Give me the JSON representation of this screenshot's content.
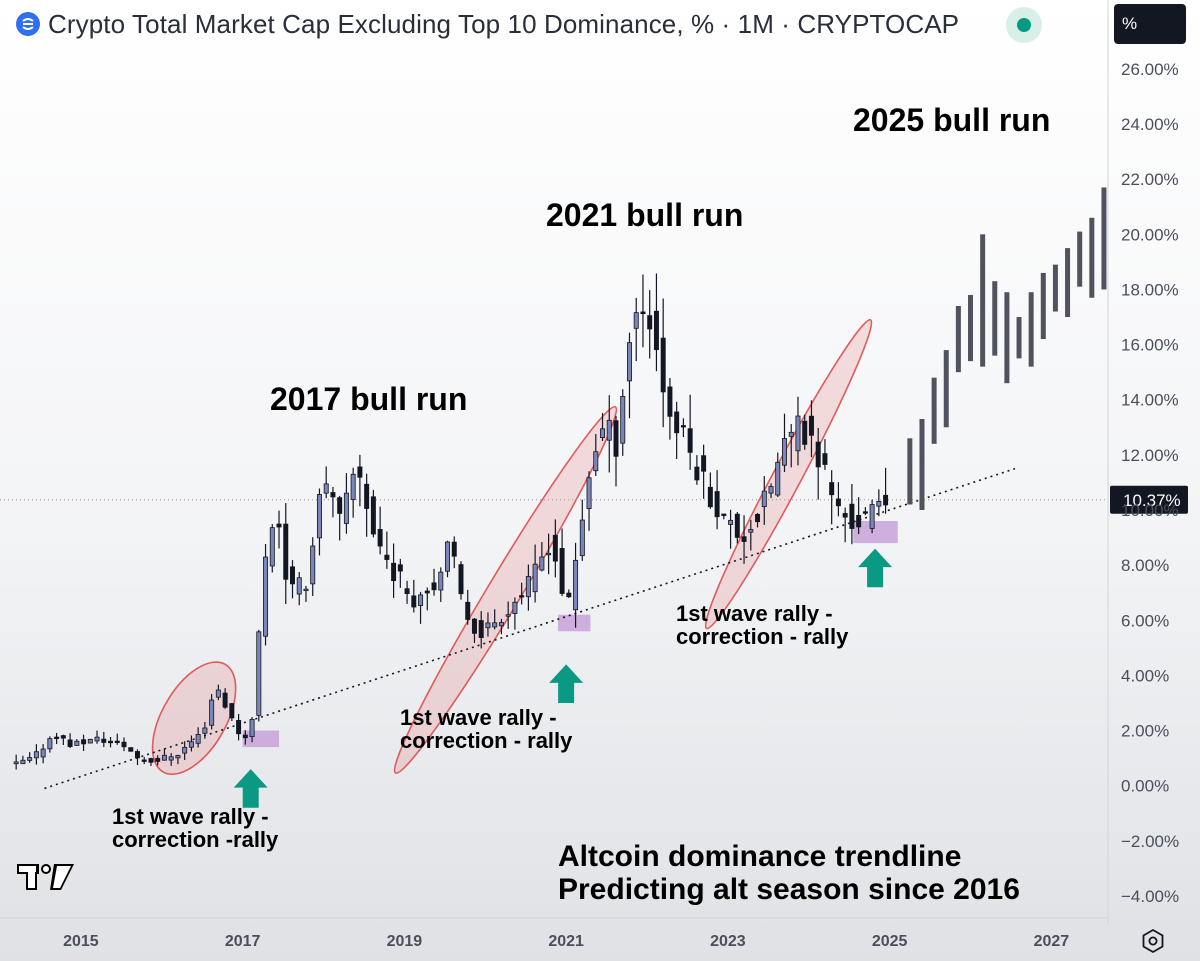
{
  "header": {
    "title": "Crypto Total Market Cap Excluding Top 10 Dominance, % · 1M · CRYPTOCAP",
    "unit_button": "%",
    "status": "live"
  },
  "colors": {
    "up_candle": "#7a86b8",
    "down_candle": "#131722",
    "ellipse_stroke": "#e15a5a",
    "ellipse_fill": "rgba(230,90,90,0.18)",
    "highlight_box": "#c8a2d8",
    "arrow": "#0a9983",
    "projection": "#50535e",
    "price_label_bg": "#131722"
  },
  "chart_data": {
    "type": "candlestick",
    "title": "Crypto Total Market Cap Excluding Top 10 Dominance, %",
    "interval": "1M",
    "ylim": [
      -4.8,
      28.5
    ],
    "xlim": [
      2014.0,
      2027.7
    ],
    "y_ticks": [
      "26.00%",
      "24.00%",
      "22.00%",
      "20.00%",
      "18.00%",
      "16.00%",
      "14.00%",
      "12.00%",
      "10.00%",
      "8.00%",
      "6.00%",
      "4.00%",
      "2.00%",
      "0.00%",
      "−2.00%",
      "−4.00%"
    ],
    "y_tick_values": [
      26,
      24,
      22,
      20,
      18,
      16,
      14,
      12,
      10,
      8,
      6,
      4,
      2,
      0,
      -2,
      -4
    ],
    "x_ticks": [
      "2015",
      "2017",
      "2019",
      "2021",
      "2023",
      "2025",
      "2027"
    ],
    "x_tick_values": [
      2015,
      2017,
      2019,
      2021,
      2023,
      2025,
      2027
    ],
    "last_value": "10.37%",
    "last_value_num": 10.37,
    "grid": false,
    "anchors": [
      [
        2014.2,
        0.7
      ],
      [
        2014.5,
        1.0
      ],
      [
        2014.75,
        1.9
      ],
      [
        2014.95,
        1.5
      ],
      [
        2015.3,
        1.7
      ],
      [
        2015.6,
        1.5
      ],
      [
        2015.8,
        1.0
      ],
      [
        2016.0,
        0.9
      ],
      [
        2016.3,
        1.2
      ],
      [
        2016.6,
        2.0
      ],
      [
        2016.75,
        3.7
      ],
      [
        2016.95,
        2.4
      ],
      [
        2017.1,
        1.6
      ],
      [
        2017.2,
        2.5
      ],
      [
        2017.35,
        8.0
      ],
      [
        2017.5,
        10.3
      ],
      [
        2017.65,
        7.0
      ],
      [
        2017.9,
        7.5
      ],
      [
        2018.05,
        11.2
      ],
      [
        2018.3,
        9.5
      ],
      [
        2018.5,
        11.8
      ],
      [
        2018.7,
        9.2
      ],
      [
        2018.9,
        8.0
      ],
      [
        2019.2,
        6.8
      ],
      [
        2019.5,
        7.5
      ],
      [
        2019.65,
        8.8
      ],
      [
        2019.8,
        6.5
      ],
      [
        2020.0,
        5.5
      ],
      [
        2020.3,
        6.2
      ],
      [
        2020.6,
        7.2
      ],
      [
        2020.9,
        9.0
      ],
      [
        2021.0,
        7.5
      ],
      [
        2021.1,
        6.3
      ],
      [
        2021.25,
        9.0
      ],
      [
        2021.4,
        12.0
      ],
      [
        2021.55,
        13.0
      ],
      [
        2021.7,
        12.5
      ],
      [
        2021.9,
        17.0
      ],
      [
        2022.05,
        17.5
      ],
      [
        2022.2,
        16.0
      ],
      [
        2022.35,
        13.5
      ],
      [
        2022.55,
        12.5
      ],
      [
        2022.8,
        11.0
      ],
      [
        2023.0,
        9.8
      ],
      [
        2023.25,
        9.0
      ],
      [
        2023.5,
        10.0
      ],
      [
        2023.8,
        12.5
      ],
      [
        2024.0,
        13.0
      ],
      [
        2024.2,
        12.0
      ],
      [
        2024.45,
        10.0
      ],
      [
        2024.65,
        9.5
      ],
      [
        2024.85,
        9.8
      ],
      [
        2025.0,
        10.37
      ]
    ],
    "projection_bars": [
      [
        2025.25,
        10.2,
        12.6
      ],
      [
        2025.4,
        10.0,
        13.3
      ],
      [
        2025.55,
        12.4,
        14.8
      ],
      [
        2025.7,
        13.0,
        15.8
      ],
      [
        2025.85,
        15.0,
        17.4
      ],
      [
        2026.0,
        15.4,
        17.8
      ],
      [
        2026.15,
        15.2,
        20.0
      ],
      [
        2026.3,
        15.6,
        18.3
      ],
      [
        2026.45,
        14.6,
        17.9
      ],
      [
        2026.6,
        15.5,
        17.0
      ],
      [
        2026.75,
        15.2,
        17.9
      ],
      [
        2026.9,
        16.2,
        18.6
      ],
      [
        2027.05,
        17.2,
        18.9
      ],
      [
        2027.2,
        17.0,
        19.5
      ],
      [
        2027.35,
        18.1,
        20.1
      ],
      [
        2027.5,
        17.7,
        20.6
      ],
      [
        2027.65,
        18.0,
        21.7
      ]
    ],
    "trendline": [
      [
        2014.55,
        -0.1
      ],
      [
        2026.55,
        11.5
      ]
    ],
    "ellipses": [
      {
        "x": 2016.4,
        "y": 2.45,
        "rx_years": 0.32,
        "ry": 2.1,
        "angle": -60
      },
      {
        "x": 2020.25,
        "y": 7.1,
        "rx_years": 1.1,
        "ry": 1.1,
        "angle": -59
      },
      {
        "x": 2023.75,
        "y": 11.3,
        "rx_years": 0.9,
        "ry": 0.9,
        "angle": -62
      }
    ],
    "highlight_boxes": [
      {
        "x0": 2017.0,
        "x1": 2017.45,
        "y0": 1.4,
        "y1": 2.0
      },
      {
        "x0": 2020.9,
        "x1": 2021.3,
        "y0": 5.6,
        "y1": 6.2
      },
      {
        "x0": 2024.55,
        "x1": 2025.1,
        "y0": 8.8,
        "y1": 9.6
      }
    ],
    "arrows": [
      {
        "x": 2017.1,
        "y_top": 0.6,
        "y_bottom": -0.8
      },
      {
        "x": 2021.0,
        "y_top": 4.4,
        "y_bottom": 3.0
      },
      {
        "x": 2024.82,
        "y_top": 8.6,
        "y_bottom": 7.2
      }
    ]
  },
  "annotations": {
    "bull_2017": "2017 bull run",
    "bull_2021": "2021 bull run",
    "bull_2025": "2025 bull run",
    "wave1_line1": "1st wave rally -",
    "wave1_line2": "correction -rally",
    "wave2_line1": "1st wave rally -",
    "wave2_line2": "correction - rally",
    "wave3_line1": "1st wave rally -",
    "wave3_line2": "correction - rally",
    "headline_line1": "Altcoin dominance trendline",
    "headline_line2": "Predicting alt season since 2016"
  }
}
